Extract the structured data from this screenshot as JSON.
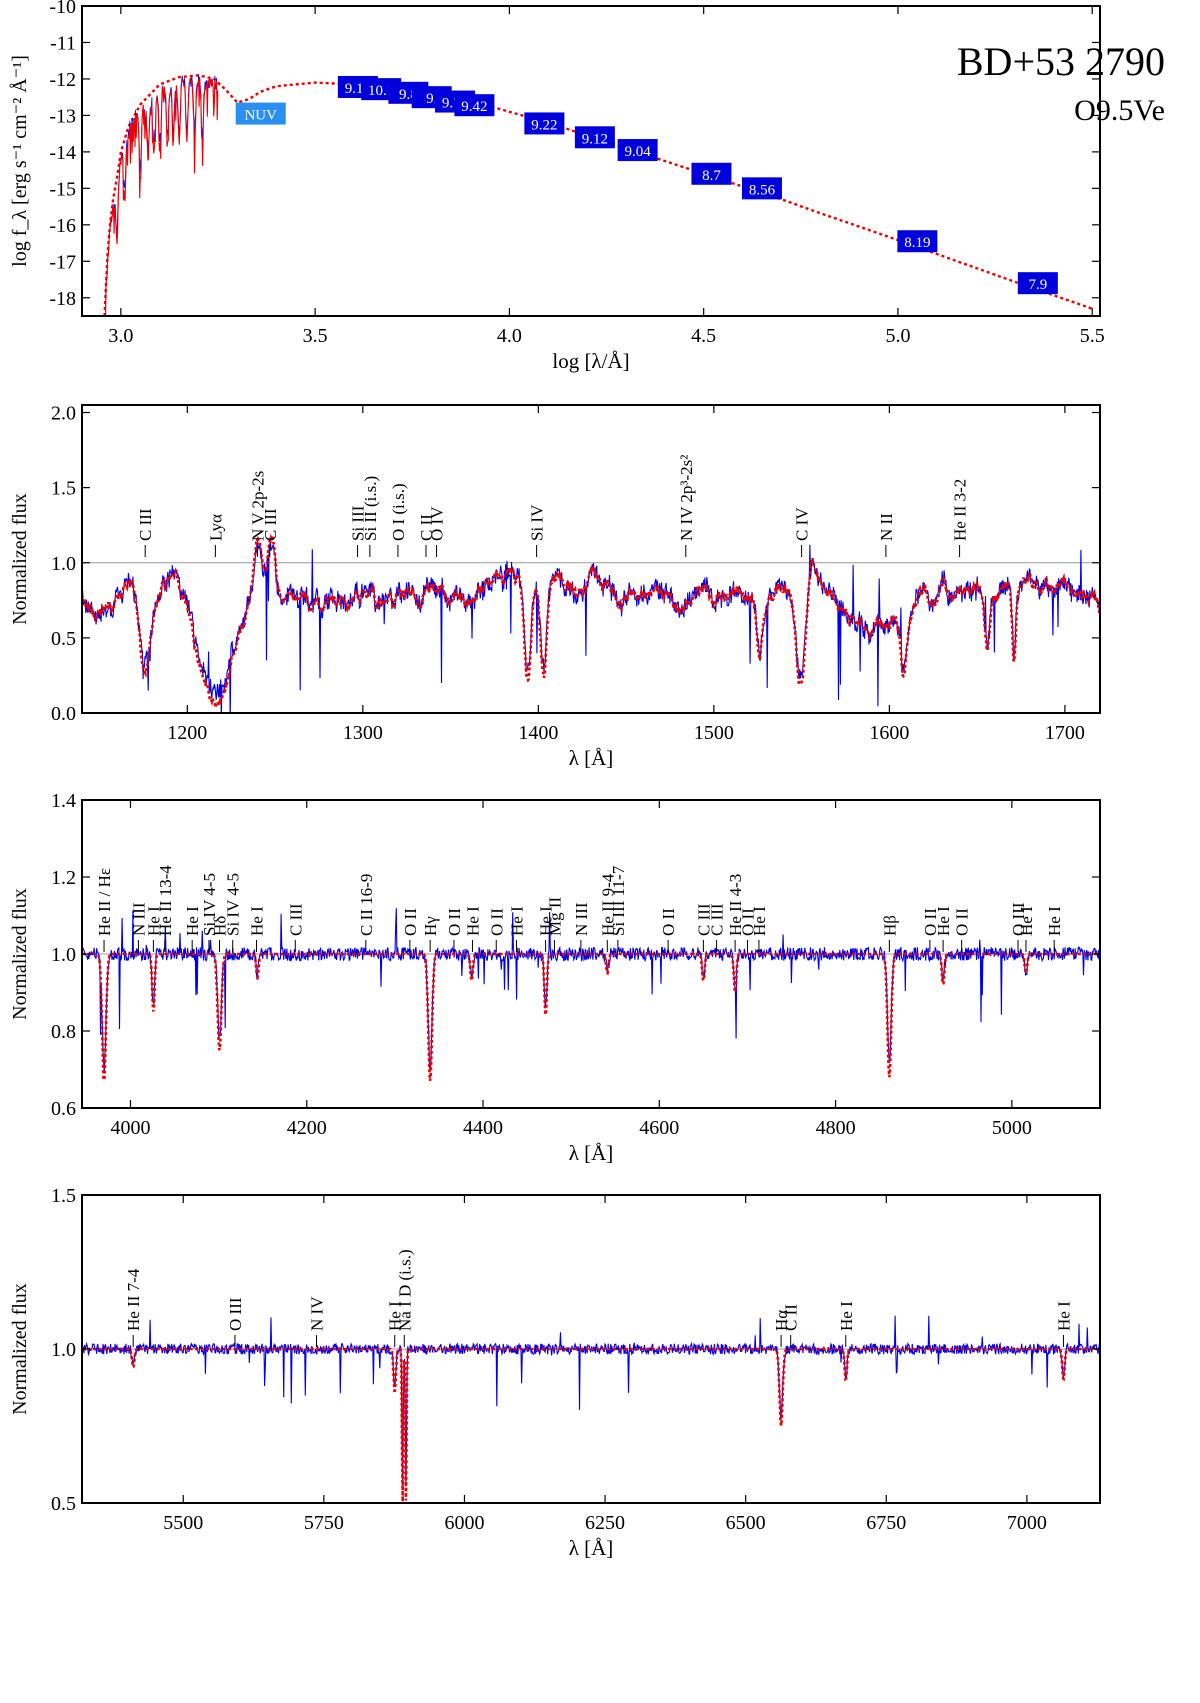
{
  "star": {
    "name": "BD+53 2790",
    "spectral_type": "O9.5Ve"
  },
  "colors": {
    "observed": "#0000ee",
    "model": "#ee0000",
    "photometry_box": "#0000dd",
    "nuv_box": "#2a8ff0",
    "frame": "#000000",
    "reference_line": "#999999"
  },
  "chart_data": [
    {
      "id": "sed",
      "type": "line",
      "xlabel": "log [λ/Å]",
      "ylabel": "log f_λ [erg s⁻¹ cm⁻² Å⁻¹]",
      "xlim": [
        2.9,
        5.52
      ],
      "ylim": [
        -18.5,
        -10
      ],
      "xticks": [
        3.0,
        3.5,
        4.0,
        4.5,
        5.0,
        5.5
      ],
      "xtick_labels": [
        "3.0",
        "3.5",
        "4.0",
        "4.5",
        "5.0",
        "5.5"
      ],
      "yticks": [
        -18,
        -17,
        -16,
        -15,
        -14,
        -13,
        -12,
        -11,
        -10
      ],
      "ytick_labels": [
        "-18",
        "-17",
        "-16",
        "-15",
        "-14",
        "-13",
        "-12",
        "-11",
        "-10"
      ],
      "model_continuum": [
        [
          2.958,
          -18.5
        ],
        [
          2.962,
          -17.6
        ],
        [
          2.966,
          -16.8
        ],
        [
          2.972,
          -16.0
        ],
        [
          2.98,
          -15.3
        ],
        [
          2.99,
          -14.7
        ],
        [
          3.0,
          -14.0
        ],
        [
          3.02,
          -13.3
        ],
        [
          3.05,
          -12.7
        ],
        [
          3.1,
          -12.15
        ],
        [
          3.15,
          -11.95
        ],
        [
          3.2,
          -11.9
        ],
        [
          3.24,
          -12.0
        ],
        [
          3.27,
          -12.3
        ],
        [
          3.3,
          -12.65
        ],
        [
          3.33,
          -12.55
        ],
        [
          3.36,
          -12.35
        ],
        [
          3.4,
          -12.2
        ],
        [
          3.45,
          -12.15
        ],
        [
          3.5,
          -12.1
        ],
        [
          3.6,
          -12.15
        ],
        [
          3.7,
          -12.25
        ],
        [
          3.8,
          -12.4
        ],
        [
          3.9,
          -12.6
        ],
        [
          4.0,
          -12.9
        ],
        [
          4.1,
          -13.2
        ],
        [
          4.2,
          -13.55
        ],
        [
          4.3,
          -13.9
        ],
        [
          4.4,
          -14.25
        ],
        [
          4.5,
          -14.6
        ],
        [
          4.6,
          -14.95
        ],
        [
          4.7,
          -15.3
        ],
        [
          4.8,
          -15.68
        ],
        [
          4.9,
          -16.05
        ],
        [
          5.0,
          -16.42
        ],
        [
          5.1,
          -16.8
        ],
        [
          5.2,
          -17.18
        ],
        [
          5.3,
          -17.56
        ],
        [
          5.4,
          -17.93
        ],
        [
          5.5,
          -18.3
        ]
      ],
      "uv_spectrum": {
        "x_start": 2.96,
        "x_end": 3.25,
        "absorption_lines": [
          2.99,
          3.01,
          3.05,
          3.07,
          3.085,
          3.1,
          3.12,
          3.135,
          3.15,
          3.17,
          3.19,
          3.21
        ]
      },
      "photometry": [
        {
          "label": "NUV",
          "x": 3.36,
          "y": -12.95
        },
        {
          "label": "9.18",
          "x": 3.61,
          "y": -12.22
        },
        {
          "label": "10.1",
          "x": 3.67,
          "y": -12.28
        },
        {
          "label": "9.8",
          "x": 3.74,
          "y": -12.38
        },
        {
          "label": "9.",
          "x": 3.8,
          "y": -12.5
        },
        {
          "label": "9.73",
          "x": 3.86,
          "y": -12.62
        },
        {
          "label": "9.42",
          "x": 3.91,
          "y": -12.72
        },
        {
          "label": "9.22",
          "x": 4.09,
          "y": -13.22
        },
        {
          "label": "9.12",
          "x": 4.22,
          "y": -13.6
        },
        {
          "label": "9.04",
          "x": 4.33,
          "y": -13.95
        },
        {
          "label": "8.7",
          "x": 4.52,
          "y": -14.6
        },
        {
          "label": "8.56",
          "x": 4.65,
          "y": -15.0
        },
        {
          "label": "8.19",
          "x": 5.05,
          "y": -16.45
        },
        {
          "label": "7.9",
          "x": 5.36,
          "y": -17.6
        }
      ]
    },
    {
      "id": "uv",
      "type": "line",
      "xlabel": "λ [Å]",
      "ylabel": "Normalized flux",
      "xlim": [
        1140,
        1720
      ],
      "ylim": [
        0,
        2.05
      ],
      "xticks": [
        1200,
        1300,
        1400,
        1500,
        1600,
        1700
      ],
      "xtick_labels": [
        "1200",
        "1300",
        "1400",
        "1500",
        "1600",
        "1700"
      ],
      "yticks": [
        0.0,
        0.5,
        1.0,
        1.5,
        2.0
      ],
      "ytick_labels": [
        "0.0",
        "0.5",
        "1.0",
        "1.5",
        "2.0"
      ],
      "continuum": 0.78,
      "features": [
        {
          "x": 1176,
          "depth": 0.62,
          "width": 4
        },
        {
          "x": 1216,
          "depth": 0.78,
          "width": 14
        },
        {
          "x": 1240,
          "depth": -0.35,
          "width": 3
        },
        {
          "x": 1248,
          "depth": -0.4,
          "width": 3
        },
        {
          "x": 1394,
          "depth": 0.7,
          "width": 2.5
        },
        {
          "x": 1403,
          "depth": 0.65,
          "width": 2.5
        },
        {
          "x": 1550,
          "depth": 0.6,
          "width": 4
        },
        {
          "x": 1555,
          "depth": -0.25,
          "width": 3
        },
        {
          "x": 1526,
          "depth": 0.45,
          "width": 2
        },
        {
          "x": 1608,
          "depth": 0.3,
          "width": 2
        },
        {
          "x": 1656,
          "depth": 0.4,
          "width": 2
        },
        {
          "x": 1671,
          "depth": 0.5,
          "width": 1.5
        }
      ],
      "labels": [
        {
          "text": "C III",
          "x": 1176
        },
        {
          "text": "Lyα",
          "x": 1216
        },
        {
          "text": "N V 2p-2s",
          "x": 1240
        },
        {
          "text": "C III",
          "x": 1247
        },
        {
          "text": "Si III",
          "x": 1297
        },
        {
          "text": "Si II (i.s.)",
          "x": 1304
        },
        {
          "text": "O I (i.s.)",
          "x": 1320
        },
        {
          "text": "C II",
          "x": 1336
        },
        {
          "text": "O IV",
          "x": 1342
        },
        {
          "text": "Si IV",
          "x": 1399
        },
        {
          "text": "N IV 2p³-2s²",
          "x": 1484
        },
        {
          "text": "C IV",
          "x": 1550
        },
        {
          "text": "N II",
          "x": 1598
        },
        {
          "text": "He II 3-2",
          "x": 1640
        }
      ]
    },
    {
      "id": "blue",
      "type": "line",
      "xlabel": "λ [Å]",
      "ylabel": "Normalized flux",
      "xlim": [
        3945,
        5100
      ],
      "ylim": [
        0.6,
        1.4
      ],
      "xticks": [
        4000,
        4200,
        4400,
        4600,
        4800,
        5000
      ],
      "xtick_labels": [
        "4000",
        "4200",
        "4400",
        "4600",
        "4800",
        "5000"
      ],
      "yticks": [
        0.6,
        0.8,
        1.0,
        1.2,
        1.4
      ],
      "ytick_labels": [
        "0.6",
        "0.8",
        "1.0",
        "1.2",
        "1.4"
      ],
      "continuum": 1.0,
      "features": [
        {
          "x": 3970,
          "depth": 0.33,
          "width": 3
        },
        {
          "x": 4026,
          "depth": 0.15,
          "width": 2
        },
        {
          "x": 4101,
          "depth": 0.25,
          "width": 3
        },
        {
          "x": 4144,
          "depth": 0.06,
          "width": 2
        },
        {
          "x": 4340,
          "depth": 0.33,
          "width": 3
        },
        {
          "x": 4387,
          "depth": 0.07,
          "width": 2
        },
        {
          "x": 4471,
          "depth": 0.16,
          "width": 2
        },
        {
          "x": 4541,
          "depth": 0.05,
          "width": 2
        },
        {
          "x": 4650,
          "depth": 0.07,
          "width": 2
        },
        {
          "x": 4686,
          "depth": 0.1,
          "width": 2
        },
        {
          "x": 4861,
          "depth": 0.32,
          "width": 3
        },
        {
          "x": 4922,
          "depth": 0.08,
          "width": 2
        },
        {
          "x": 5016,
          "depth": 0.05,
          "width": 2
        }
      ],
      "labels": [
        {
          "text": "He II / Hε",
          "x": 3970
        },
        {
          "text": "N III",
          "x": 4009
        },
        {
          "text": "He I",
          "x": 4026
        },
        {
          "text": "He II 13-4",
          "x": 4039
        },
        {
          "text": "He I",
          "x": 4070
        },
        {
          "text": "Si IV 4-5",
          "x": 4089
        },
        {
          "text": "Hδ",
          "x": 4101
        },
        {
          "text": "Si IV 4-5",
          "x": 4116
        },
        {
          "text": "He I",
          "x": 4143
        },
        {
          "text": "C III",
          "x": 4187
        },
        {
          "text": "C II 16-9",
          "x": 4267
        },
        {
          "text": "O II",
          "x": 4317
        },
        {
          "text": "Hγ",
          "x": 4340
        },
        {
          "text": "O II",
          "x": 4367
        },
        {
          "text": "He I",
          "x": 4388
        },
        {
          "text": "O II",
          "x": 4415
        },
        {
          "text": "He I",
          "x": 4438
        },
        {
          "text": "He I",
          "x": 4471
        },
        {
          "text": "Mg II",
          "x": 4481
        },
        {
          "text": "N III",
          "x": 4511
        },
        {
          "text": "He II 9-4",
          "x": 4541
        },
        {
          "text": "Si III 11-7",
          "x": 4553
        },
        {
          "text": "O II",
          "x": 4610
        },
        {
          "text": "C III",
          "x": 4650
        },
        {
          "text": "C III",
          "x": 4665
        },
        {
          "text": "He II 4-3",
          "x": 4686
        },
        {
          "text": "O II",
          "x": 4700
        },
        {
          "text": "He I",
          "x": 4713
        },
        {
          "text": "Hβ",
          "x": 4861
        },
        {
          "text": "O II",
          "x": 4907
        },
        {
          "text": "He I",
          "x": 4922
        },
        {
          "text": "O II",
          "x": 4943
        },
        {
          "text": "O III",
          "x": 5007
        },
        {
          "text": "He I",
          "x": 5016
        },
        {
          "text": "He I",
          "x": 5048
        }
      ]
    },
    {
      "id": "red",
      "type": "line",
      "xlabel": "λ [Å]",
      "ylabel": "Normalized flux",
      "xlim": [
        5320,
        7130
      ],
      "ylim": [
        0.5,
        1.5
      ],
      "xticks": [
        5500,
        5750,
        6000,
        6250,
        6500,
        6750,
        7000
      ],
      "xtick_labels": [
        "5500",
        "5750",
        "6000",
        "6250",
        "6500",
        "6750",
        "7000"
      ],
      "yticks": [
        0.5,
        1.0,
        1.5
      ],
      "ytick_labels": [
        "0.5",
        "1.0",
        "1.5"
      ],
      "continuum": 1.0,
      "features": [
        {
          "x": 5411,
          "depth": 0.06,
          "width": 3
        },
        {
          "x": 5876,
          "depth": 0.14,
          "width": 3
        },
        {
          "x": 5890,
          "depth": 0.5,
          "width": 1.5
        },
        {
          "x": 5896,
          "depth": 0.5,
          "width": 1.5
        },
        {
          "x": 6563,
          "depth": 0.25,
          "width": 4
        },
        {
          "x": 6678,
          "depth": 0.1,
          "width": 3
        },
        {
          "x": 7065,
          "depth": 0.1,
          "width": 3
        }
      ],
      "labels": [
        {
          "text": "He II 7-4",
          "x": 5411
        },
        {
          "text": "O III",
          "x": 5592
        },
        {
          "text": "N IV",
          "x": 5737
        },
        {
          "text": "He I",
          "x": 5876
        },
        {
          "text": "Na I D (i.s.)",
          "x": 5893
        },
        {
          "text": "Hα",
          "x": 6563
        },
        {
          "text": "C II",
          "x": 6580
        },
        {
          "text": "He I",
          "x": 6678
        },
        {
          "text": "He I",
          "x": 7065
        }
      ]
    }
  ]
}
